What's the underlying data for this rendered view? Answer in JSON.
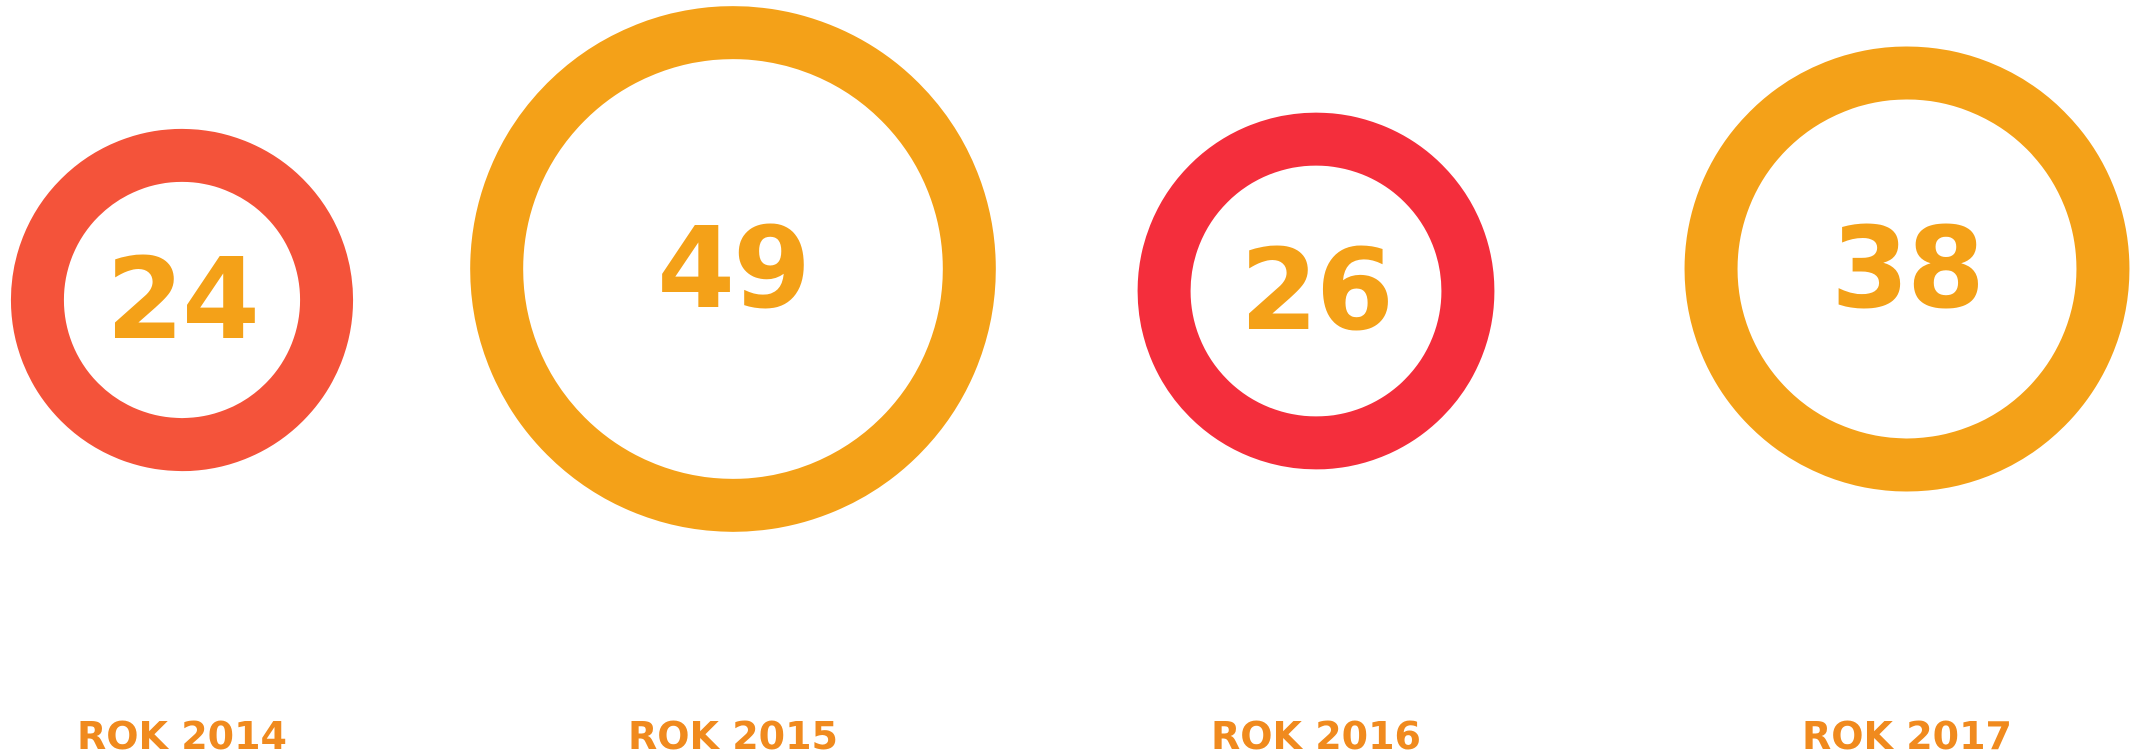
{
  "chart_data": {
    "type": "bubble",
    "items": [
      {
        "label": "ROK 2014",
        "value": 24,
        "color": "#f4533a"
      },
      {
        "label": "ROK 2015",
        "value": 49,
        "color": "#f4a118"
      },
      {
        "label": "ROK 2016",
        "value": 26,
        "color": "#f42e3c"
      },
      {
        "label": "ROK 2017",
        "value": 38,
        "color": "#f4a118"
      }
    ],
    "number_color": "#f4a118",
    "label_color": "#f08a1e"
  }
}
